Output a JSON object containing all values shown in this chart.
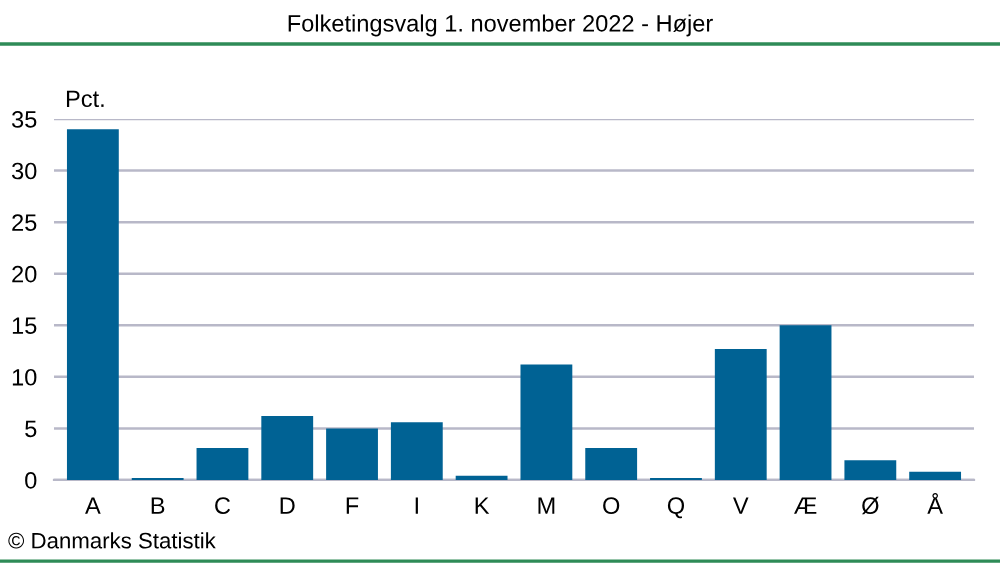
{
  "chart_data": {
    "type": "bar",
    "title": "Folketingsvalg 1. november 2022 - Højer",
    "ylabel": "Pct.",
    "categories": [
      "A",
      "B",
      "C",
      "D",
      "F",
      "I",
      "K",
      "M",
      "O",
      "Q",
      "V",
      "Æ",
      "Ø",
      "Å"
    ],
    "values": [
      34.0,
      0.2,
      3.1,
      6.2,
      5.0,
      5.6,
      0.4,
      11.2,
      3.1,
      0.2,
      12.7,
      15.0,
      1.9,
      0.8
    ],
    "color": "#006294",
    "ylim": [
      0,
      35
    ],
    "yticks": [
      0,
      5,
      10,
      15,
      20,
      25,
      30,
      35
    ],
    "grid": "y",
    "annotations": [
      "© Danmarks Statistik"
    ]
  }
}
